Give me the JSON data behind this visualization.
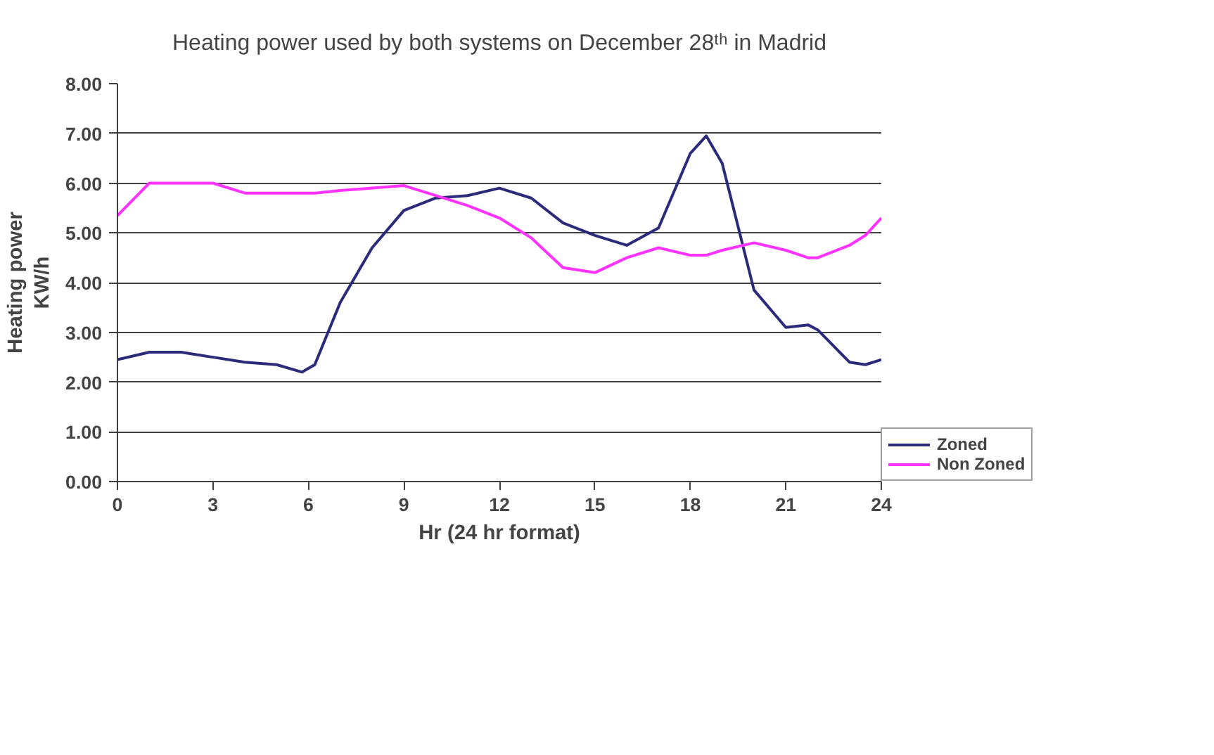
{
  "chart_data": {
    "type": "line",
    "title": "Heating power used by both systems on December 28ᵗʰ in Madrid",
    "xlabel": "Hr (24 hr format)",
    "ylabel": "Heating power\nKW/h",
    "x": [
      0,
      1,
      2,
      3,
      4,
      5,
      5.8,
      6.2,
      7,
      8,
      9,
      10,
      11,
      12,
      13,
      14,
      15,
      16,
      17,
      18,
      18.5,
      19,
      20,
      21,
      21.7,
      22,
      23,
      23.5,
      24
    ],
    "series": [
      {
        "name": "Zoned",
        "color": "#2b2b7a",
        "values": [
          2.45,
          2.6,
          2.6,
          2.5,
          2.4,
          2.35,
          2.2,
          2.35,
          3.6,
          4.7,
          5.45,
          5.7,
          5.75,
          5.9,
          5.7,
          5.2,
          4.95,
          4.75,
          5.1,
          6.6,
          6.95,
          6.4,
          3.85,
          3.1,
          3.15,
          3.05,
          2.4,
          2.35,
          2.45
        ]
      },
      {
        "name": "Non Zoned",
        "color": "#ff33ff",
        "values": [
          5.35,
          6.0,
          6.0,
          6.0,
          5.8,
          5.8,
          5.8,
          5.8,
          5.85,
          5.9,
          5.95,
          5.75,
          5.55,
          5.3,
          4.9,
          4.3,
          4.2,
          4.5,
          4.7,
          4.55,
          4.55,
          4.65,
          4.8,
          4.65,
          4.5,
          4.5,
          4.75,
          4.95,
          5.3
        ]
      }
    ],
    "xlim": [
      0,
      24
    ],
    "xticks": [
      0,
      3,
      6,
      9,
      12,
      15,
      18,
      21,
      24
    ],
    "ylim": [
      0,
      8
    ],
    "yticks": [
      {
        "value": 0,
        "label": "0.00"
      },
      {
        "value": 1,
        "label": "1.00"
      },
      {
        "value": 2,
        "label": "2.00"
      },
      {
        "value": 3,
        "label": "3.00"
      },
      {
        "value": 4,
        "label": "4.00"
      },
      {
        "value": 5,
        "label": "5.00"
      },
      {
        "value": 6,
        "label": "6.00"
      },
      {
        "value": 7,
        "label": "7.00"
      },
      {
        "value": 8,
        "label": "8.00"
      }
    ],
    "grid": "y",
    "legend": "right",
    "marker": "none",
    "line_style": "solid"
  }
}
